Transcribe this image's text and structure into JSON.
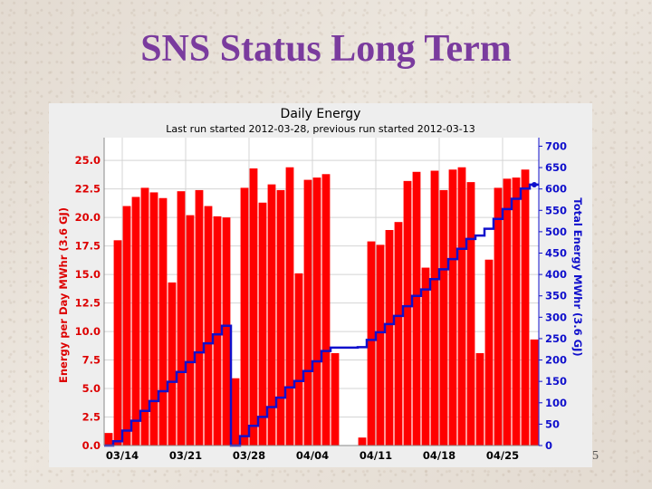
{
  "slide": {
    "title": "SNS Status Long Term",
    "page_number": "5"
  },
  "chart_data": {
    "type": "bar",
    "title": "Daily Energy",
    "subtitle": "Last run started 2012-03-28, previous run started 2012-03-13",
    "ylabel": "Energy per Day MWhr (3.6 GJ)",
    "y2label": "Total Energy MWhr (3.6 GJ)",
    "ylim": [
      0,
      27
    ],
    "y2lim": [
      0,
      720
    ],
    "yticks": [
      "0.0",
      "2.5",
      "5.0",
      "7.5",
      "10.0",
      "12.5",
      "15.0",
      "17.5",
      "20.0",
      "22.5",
      "25.0"
    ],
    "y2ticks": [
      "0",
      "50",
      "100",
      "150",
      "200",
      "250",
      "300",
      "350",
      "400",
      "450",
      "500",
      "550",
      "600",
      "650",
      "700"
    ],
    "xticks": [
      "03/14",
      "03/21",
      "03/28",
      "04/04",
      "04/11",
      "04/18",
      "04/25"
    ],
    "grid": true,
    "bar_color": "#ff0000",
    "line_color": "#1010cc",
    "first_date": "03/12",
    "series": [
      {
        "type": "bar",
        "values": [
          1.1,
          18.0,
          21.0,
          21.8,
          22.6,
          22.2,
          21.7,
          14.3,
          22.3,
          20.2,
          22.4,
          21.0,
          20.1,
          20.0,
          5.9,
          22.6,
          24.3,
          21.3,
          22.9,
          22.4,
          24.4,
          15.1,
          23.3,
          23.5,
          23.8,
          8.1,
          0,
          0,
          0.7,
          17.9,
          17.6,
          18.9,
          19.6,
          23.2,
          24.0,
          15.6,
          24.1,
          22.4,
          24.2,
          24.4,
          23.1,
          8.1,
          16.3,
          22.6,
          23.4,
          23.5,
          24.2,
          9.3
        ]
      },
      {
        "type": "line",
        "name": "",
        "values": [
          0,
          10,
          35,
          58,
          81,
          104,
          127,
          149,
          172,
          195,
          218,
          239,
          260,
          280,
          0,
          22,
          46,
          67,
          90,
          112,
          136,
          151,
          174,
          197,
          221,
          229,
          229,
          229,
          230,
          247,
          265,
          284,
          303,
          326,
          350,
          365,
          389,
          412,
          436,
          460,
          483,
          491,
          507,
          530,
          553,
          577,
          601,
          610
        ]
      }
    ]
  }
}
